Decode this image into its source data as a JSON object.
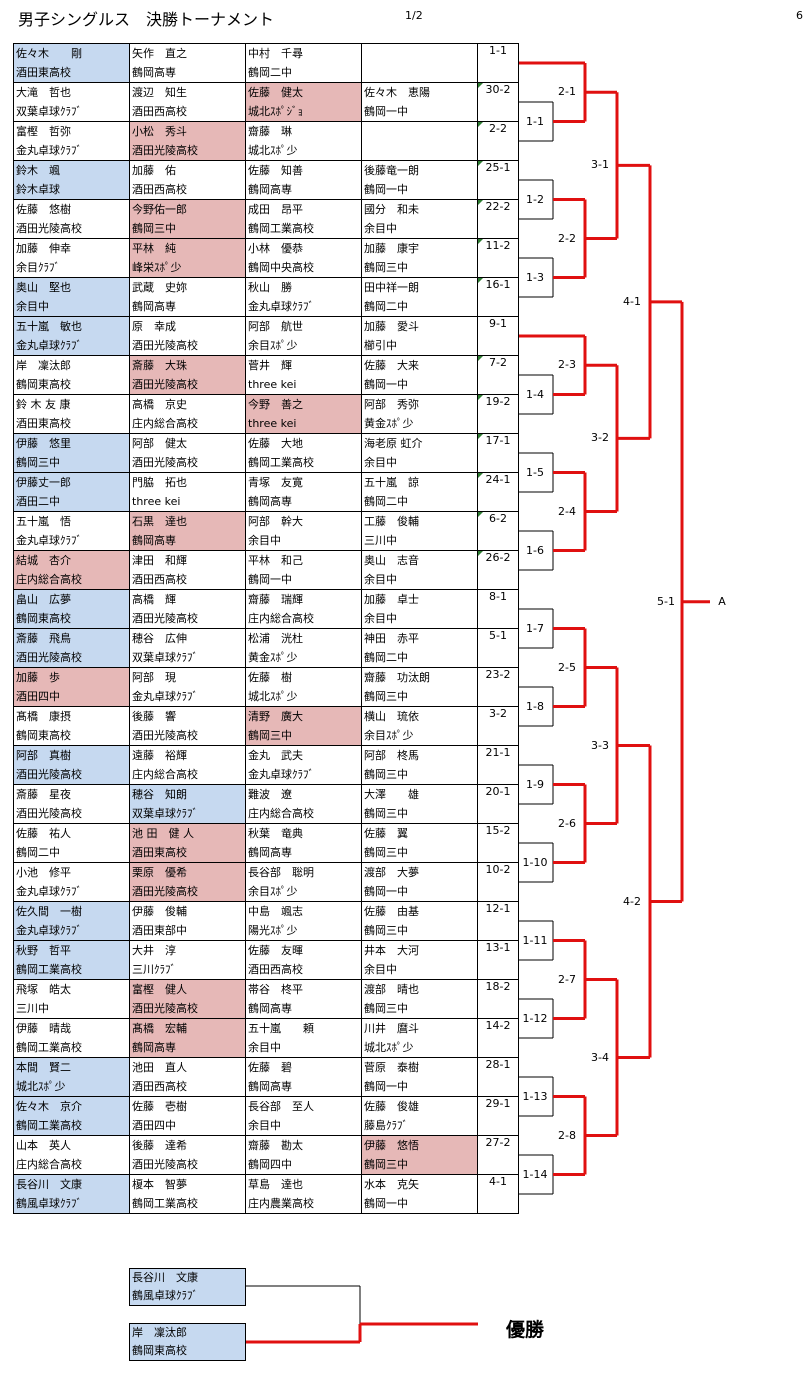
{
  "header": {
    "title": "男子シングルス　決勝トーナメント",
    "page": "1/2",
    "sheet": "6"
  },
  "rows": [
    {
      "match": "1-1",
      "players": [
        {
          "name": "佐々木　　剛",
          "club": "酒田東高校",
          "hl": "blue"
        },
        {
          "name": "矢作　直之",
          "club": "鶴岡高専"
        },
        {
          "name": "中村　千尋",
          "club": "鶴岡二中"
        },
        {
          "name": "",
          "club": ""
        }
      ]
    },
    {
      "match": "30-2",
      "players": [
        {
          "name": "大滝　哲也",
          "club": "双葉卓球ｸﾗﾌﾞ"
        },
        {
          "name": "渡辺　知生",
          "club": "酒田西高校"
        },
        {
          "name": "佐藤　健太",
          "club": "城北ｽﾎﾟｼﾞｮ",
          "hl": "pink"
        },
        {
          "name": "佐々木　恵陽",
          "club": "鶴岡一中"
        }
      ]
    },
    {
      "match": "2-2",
      "players": [
        {
          "name": "富樫　哲弥",
          "club": "金丸卓球ｸﾗﾌﾞ"
        },
        {
          "name": "小松　秀斗",
          "club": "酒田光陵高校",
          "hl": "pink"
        },
        {
          "name": "齋藤　琳",
          "club": "城北ｽﾎﾟ少"
        },
        {
          "name": "",
          "club": ""
        }
      ]
    },
    {
      "match": "25-1",
      "players": [
        {
          "name": "鈴木　颯",
          "club": "鈴木卓球",
          "hl": "blue"
        },
        {
          "name": "加藤　佑",
          "club": "酒田西高校"
        },
        {
          "name": "佐藤　知善",
          "club": "鶴岡高専"
        },
        {
          "name": "後藤竜一朗",
          "club": "鶴岡一中"
        }
      ]
    },
    {
      "match": "22-2",
      "players": [
        {
          "name": "佐藤　悠樹",
          "club": "酒田光陵高校"
        },
        {
          "name": "今野佑一郎",
          "club": "鶴岡三中",
          "hl": "pink"
        },
        {
          "name": "成田　昂平",
          "club": "鶴岡工業高校"
        },
        {
          "name": "國分　和未",
          "club": "余目中"
        }
      ]
    },
    {
      "match": "11-2",
      "players": [
        {
          "name": "加藤　伸幸",
          "club": "余目ｸﾗﾌﾞ"
        },
        {
          "name": "平林　純",
          "club": "峰栄ｽﾎﾟ少",
          "hl": "pink"
        },
        {
          "name": "小林　優恭",
          "club": "鶴岡中央高校"
        },
        {
          "name": "加藤　康宇",
          "club": "鶴岡三中"
        }
      ]
    },
    {
      "match": "16-1",
      "players": [
        {
          "name": "奥山　堅也",
          "club": "余目中",
          "hl": "blue"
        },
        {
          "name": "武蔵　史妳",
          "club": "鶴岡高専"
        },
        {
          "name": "秋山　勝",
          "club": "金丸卓球ｸﾗﾌﾞ"
        },
        {
          "name": "田中祥一朗",
          "club": "鶴岡二中"
        }
      ]
    },
    {
      "match": "9-1",
      "players": [
        {
          "name": "五十嵐　敏也",
          "club": "金丸卓球ｸﾗﾌﾞ",
          "hl": "blue"
        },
        {
          "name": "原　幸成",
          "club": "酒田光陵高校"
        },
        {
          "name": "阿部　航世",
          "club": "余目ｽﾎﾟ少"
        },
        {
          "name": "加藤　愛斗",
          "club": "櫛引中"
        }
      ]
    },
    {
      "match": "7-2",
      "players": [
        {
          "name": "岸　凜汰郎",
          "club": "鶴岡東高校"
        },
        {
          "name": "斎藤　大珠",
          "club": "酒田光陵高校",
          "hl": "pink"
        },
        {
          "name": "菅井　輝",
          "club": "three kei"
        },
        {
          "name": "佐藤　大来",
          "club": "鶴岡一中"
        }
      ]
    },
    {
      "match": "19-2",
      "players": [
        {
          "name": "鈴 木 友 康",
          "club": "酒田東高校"
        },
        {
          "name": "高橋　京史",
          "club": "庄内総合高校"
        },
        {
          "name": "今野　善之",
          "club": "three kei",
          "hl": "pink"
        },
        {
          "name": "阿部　秀弥",
          "club": "黄金ｽﾎﾟ少"
        }
      ]
    },
    {
      "match": "17-1",
      "players": [
        {
          "name": "伊藤　悠里",
          "club": "鶴岡三中",
          "hl": "blue"
        },
        {
          "name": "阿部　健太",
          "club": "酒田光陵高校"
        },
        {
          "name": "佐藤　大地",
          "club": "鶴岡工業高校"
        },
        {
          "name": "海老原 虹介",
          "club": "余目中"
        }
      ]
    },
    {
      "match": "24-1",
      "players": [
        {
          "name": "伊藤丈一郎",
          "club": "酒田二中",
          "hl": "blue"
        },
        {
          "name": "門脇　拓也",
          "club": "three kei"
        },
        {
          "name": "青塚　友寛",
          "club": "鶴岡高専"
        },
        {
          "name": "五十嵐　諒",
          "club": "鶴岡二中"
        }
      ]
    },
    {
      "match": "6-2",
      "players": [
        {
          "name": "五十嵐　悟",
          "club": "金丸卓球ｸﾗﾌﾞ"
        },
        {
          "name": "石黒　達也",
          "club": "鶴岡高専",
          "hl": "pink"
        },
        {
          "name": "阿部　幹大",
          "club": "余目中"
        },
        {
          "name": "工藤　俊輔",
          "club": "三川中"
        }
      ]
    },
    {
      "match": "26-2",
      "players": [
        {
          "name": "結城　杏介",
          "club": "庄内総合高校",
          "hl": "pink"
        },
        {
          "name": "津田　和輝",
          "club": "酒田西高校"
        },
        {
          "name": "平林　和己",
          "club": "鶴岡一中"
        },
        {
          "name": "奥山　志音",
          "club": "余目中"
        }
      ]
    },
    {
      "match": "8-1",
      "players": [
        {
          "name": "畠山　広夢",
          "club": "鶴岡東高校",
          "hl": "blue"
        },
        {
          "name": "高橋　輝",
          "club": "酒田光陵高校"
        },
        {
          "name": "齋藤　瑞輝",
          "club": "庄内総合高校"
        },
        {
          "name": "加藤　卓士",
          "club": "余目中"
        }
      ]
    },
    {
      "match": "5-1",
      "players": [
        {
          "name": "斎藤　飛鳥",
          "club": "酒田光陵高校",
          "hl": "blue"
        },
        {
          "name": "穂谷　広伸",
          "club": "双葉卓球ｸﾗﾌﾞ"
        },
        {
          "name": "松浦　洸杜",
          "club": "黄金ｽﾎﾟ少"
        },
        {
          "name": "神田　赤平",
          "club": "鶴岡二中"
        }
      ]
    },
    {
      "match": "23-2",
      "players": [
        {
          "name": "加藤　歩",
          "club": "酒田四中",
          "hl": "pink"
        },
        {
          "name": "阿部　現",
          "club": "金丸卓球ｸﾗﾌﾞ"
        },
        {
          "name": "佐藤　樹",
          "club": "城北ｽﾎﾟ少"
        },
        {
          "name": "齋藤　功汰朗",
          "club": "鶴岡三中"
        }
      ]
    },
    {
      "match": "3-2",
      "players": [
        {
          "name": "髙橋　康摂",
          "club": "鶴岡東高校"
        },
        {
          "name": "後藤　響",
          "club": "酒田光陵高校"
        },
        {
          "name": "清野　廣大",
          "club": "鶴岡三中",
          "hl": "pink"
        },
        {
          "name": "横山　琉依",
          "club": "余目ｽﾎﾟ少"
        }
      ]
    },
    {
      "match": "21-1",
      "players": [
        {
          "name": "阿部　真樹",
          "club": "酒田光陵高校",
          "hl": "blue"
        },
        {
          "name": "遠藤　裕輝",
          "club": "庄内総合高校"
        },
        {
          "name": "金丸　武夫",
          "club": "金丸卓球ｸﾗﾌﾞ"
        },
        {
          "name": "阿部　柊馬",
          "club": "鶴岡三中"
        }
      ]
    },
    {
      "match": "20-1",
      "players": [
        {
          "name": "斎藤　星夜",
          "club": "酒田光陵高校"
        },
        {
          "name": "穂谷　知朗",
          "club": "双葉卓球ｸﾗﾌﾞ",
          "hl": "blue"
        },
        {
          "name": "難波　遼",
          "club": "庄内総合高校"
        },
        {
          "name": "大澤　　雄",
          "club": "鶴岡三中"
        }
      ]
    },
    {
      "match": "15-2",
      "players": [
        {
          "name": "佐藤　祐人",
          "club": "鶴岡二中"
        },
        {
          "name": "池 田　健 人",
          "club": "酒田東高校",
          "hl": "pink"
        },
        {
          "name": "秋葉　竜典",
          "club": "鶴岡高専"
        },
        {
          "name": "佐藤　翼",
          "club": "鶴岡三中"
        }
      ]
    },
    {
      "match": "10-2",
      "players": [
        {
          "name": "小池　修平",
          "club": "金丸卓球ｸﾗﾌﾞ"
        },
        {
          "name": "栗原　優希",
          "club": "酒田光陵高校",
          "hl": "pink"
        },
        {
          "name": "長谷部　聡明",
          "club": "余目ｽﾎﾟ少"
        },
        {
          "name": "渡部　大夢",
          "club": "鶴岡一中"
        }
      ]
    },
    {
      "match": "12-1",
      "players": [
        {
          "name": "佐久間　一樹",
          "club": "金丸卓球ｸﾗﾌﾞ",
          "hl": "blue"
        },
        {
          "name": "伊藤　俊輔",
          "club": "酒田東部中"
        },
        {
          "name": "中島　颯志",
          "club": "陽光ｽﾎﾟ少"
        },
        {
          "name": "佐藤　由基",
          "club": "鶴岡三中"
        }
      ]
    },
    {
      "match": "13-1",
      "players": [
        {
          "name": "秋野　哲平",
          "club": "鶴岡工業高校",
          "hl": "blue"
        },
        {
          "name": "大井　淳",
          "club": "三川ｸﾗﾌﾞ"
        },
        {
          "name": "佐藤　友暉",
          "club": "酒田西高校"
        },
        {
          "name": "井本　大河",
          "club": "余目中"
        }
      ]
    },
    {
      "match": "18-2",
      "players": [
        {
          "name": "飛塚　皓太",
          "club": "三川中"
        },
        {
          "name": "富樫　健人",
          "club": "酒田光陵高校",
          "hl": "pink"
        },
        {
          "name": "帯谷　柊平",
          "club": "鶴岡高専"
        },
        {
          "name": "渡部　晴也",
          "club": "鶴岡三中"
        }
      ]
    },
    {
      "match": "14-2",
      "players": [
        {
          "name": "伊藤　晴哉",
          "club": "鶴岡工業高校"
        },
        {
          "name": "髙橋　宏輔",
          "club": "鶴岡高専",
          "hl": "pink"
        },
        {
          "name": "五十嵐　　頼",
          "club": "余目中"
        },
        {
          "name": "川井　麿斗",
          "club": "城北ｽﾎﾟ少"
        }
      ]
    },
    {
      "match": "28-1",
      "players": [
        {
          "name": "本間　賢二",
          "club": "城北ｽﾎﾟ少",
          "hl": "blue"
        },
        {
          "name": "池田　直人",
          "club": "酒田西高校"
        },
        {
          "name": "佐藤　碧",
          "club": "鶴岡高専"
        },
        {
          "name": "菅原　泰樹",
          "club": "鶴岡一中"
        }
      ]
    },
    {
      "match": "29-1",
      "players": [
        {
          "name": "佐々木　京介",
          "club": "鶴岡工業高校",
          "hl": "blue"
        },
        {
          "name": "佐藤　壱樹",
          "club": "酒田四中"
        },
        {
          "name": "長谷部　至人",
          "club": "余目中"
        },
        {
          "name": "佐藤　俊雄",
          "club": "藤島ｸﾗﾌﾞ"
        }
      ]
    },
    {
      "match": "27-2",
      "players": [
        {
          "name": "山本　英人",
          "club": "庄内総合高校"
        },
        {
          "name": "後藤　達希",
          "club": "酒田光陵高校"
        },
        {
          "name": "齋藤　勘太",
          "club": "鶴岡四中"
        },
        {
          "name": "伊藤　悠悟",
          "club": "鶴岡三中",
          "hl": "pink"
        }
      ]
    },
    {
      "match": "4-1",
      "players": [
        {
          "name": "長谷川　文康",
          "club": "鶴風卓球ｸﾗﾌﾞ",
          "hl": "blue"
        },
        {
          "name": "榎本　智夢",
          "club": "鶴岡工業高校"
        },
        {
          "name": "草島　達也",
          "club": "庄内農業高校"
        },
        {
          "name": "水本　克矢",
          "club": "鶴岡一中"
        }
      ]
    }
  ],
  "rounds": {
    "r1": [
      "1-1",
      "1-2",
      "1-3",
      "1-4",
      "1-5",
      "1-6",
      "1-7",
      "1-8",
      "1-9",
      "1-10",
      "1-11",
      "1-12",
      "1-13",
      "1-14"
    ],
    "r2": [
      "2-1",
      "2-2",
      "2-3",
      "2-4",
      "2-5",
      "2-6",
      "2-7",
      "2-8"
    ],
    "r3": [
      "3-1",
      "3-2",
      "3-3",
      "3-4"
    ],
    "r4": [
      "4-1",
      "4-2"
    ],
    "r5": [
      "5-1"
    ],
    "final_slot": "A"
  },
  "final": {
    "p1": {
      "name": "長谷川　文康",
      "club": "鶴風卓球ｸﾗﾌﾞ"
    },
    "p2": {
      "name": "岸　凜汰郎",
      "club": "鶴岡東高校"
    },
    "champion_label": "優勝"
  },
  "colors": {
    "winner_line": "#e01010",
    "blue": "#c6d9f0",
    "pink": "#e6b8b7",
    "marker": "#2e7d32"
  }
}
